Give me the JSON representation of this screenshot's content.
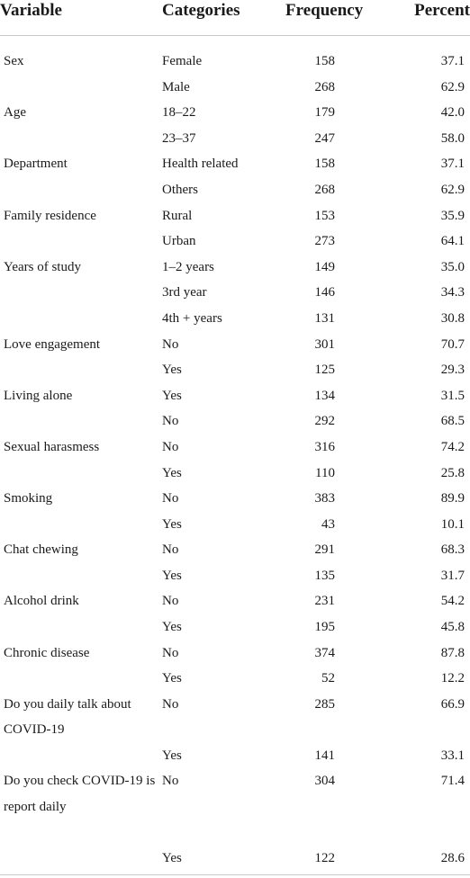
{
  "headers": {
    "variable": "Variable",
    "categories": "Categories",
    "frequency": "Frequency",
    "percent": "Percent"
  },
  "rows": [
    {
      "variable": "Sex",
      "category": "Female",
      "frequency": "158",
      "percent": "37.1"
    },
    {
      "variable": "",
      "category": "Male",
      "frequency": "268",
      "percent": "62.9"
    },
    {
      "variable": "Age",
      "category": "18–22",
      "frequency": "179",
      "percent": "42.0"
    },
    {
      "variable": "",
      "category": "23–37",
      "frequency": "247",
      "percent": "58.0"
    },
    {
      "variable": "Department",
      "category": "Health related",
      "frequency": "158",
      "percent": "37.1"
    },
    {
      "variable": "",
      "category": "Others",
      "frequency": "268",
      "percent": "62.9"
    },
    {
      "variable": "Family residence",
      "category": "Rural",
      "frequency": "153",
      "percent": "35.9"
    },
    {
      "variable": "",
      "category": "Urban",
      "frequency": "273",
      "percent": "64.1"
    },
    {
      "variable": "Years of study",
      "category": "1–2 years",
      "frequency": "149",
      "percent": "35.0"
    },
    {
      "variable": "",
      "category": "3rd year",
      "frequency": "146",
      "percent": "34.3"
    },
    {
      "variable": "",
      "category": "4th + years",
      "frequency": "131",
      "percent": "30.8"
    },
    {
      "variable": "Love engagement",
      "category": "No",
      "frequency": "301",
      "percent": "70.7"
    },
    {
      "variable": "",
      "category": "Yes",
      "frequency": "125",
      "percent": "29.3"
    },
    {
      "variable": "Living alone",
      "category": "Yes",
      "frequency": "134",
      "percent": "31.5"
    },
    {
      "variable": "",
      "category": "No",
      "frequency": "292",
      "percent": "68.5"
    },
    {
      "variable": "Sexual harasmess",
      "category": "No",
      "frequency": "316",
      "percent": "74.2"
    },
    {
      "variable": "",
      "category": "Yes",
      "frequency": "110",
      "percent": "25.8"
    },
    {
      "variable": "Smoking",
      "category": "No",
      "frequency": "383",
      "percent": "89.9"
    },
    {
      "variable": "",
      "category": "Yes",
      "frequency": "43",
      "percent": "10.1"
    },
    {
      "variable": "Chat chewing",
      "category": "No",
      "frequency": "291",
      "percent": "68.3"
    },
    {
      "variable": "",
      "category": "Yes",
      "frequency": "135",
      "percent": "31.7"
    },
    {
      "variable": "Alcohol drink",
      "category": "No",
      "frequency": "231",
      "percent": "54.2"
    },
    {
      "variable": "",
      "category": "Yes",
      "frequency": "195",
      "percent": "45.8"
    },
    {
      "variable": "Chronic disease",
      "category": "No",
      "frequency": "374",
      "percent": "87.8"
    },
    {
      "variable": "",
      "category": "Yes",
      "frequency": "52",
      "percent": "12.2"
    },
    {
      "variable": "Do you daily talk about COVID-19",
      "category": "No",
      "frequency": "285",
      "percent": "66.9"
    },
    {
      "variable": "",
      "category": "Yes",
      "frequency": "141",
      "percent": "33.1"
    },
    {
      "variable": "Do you check COVID-19 is report daily",
      "category": "No",
      "frequency": "304",
      "percent": "71.4"
    },
    {
      "variable": "",
      "category": "Yes",
      "frequency": "122",
      "percent": "28.6"
    }
  ]
}
